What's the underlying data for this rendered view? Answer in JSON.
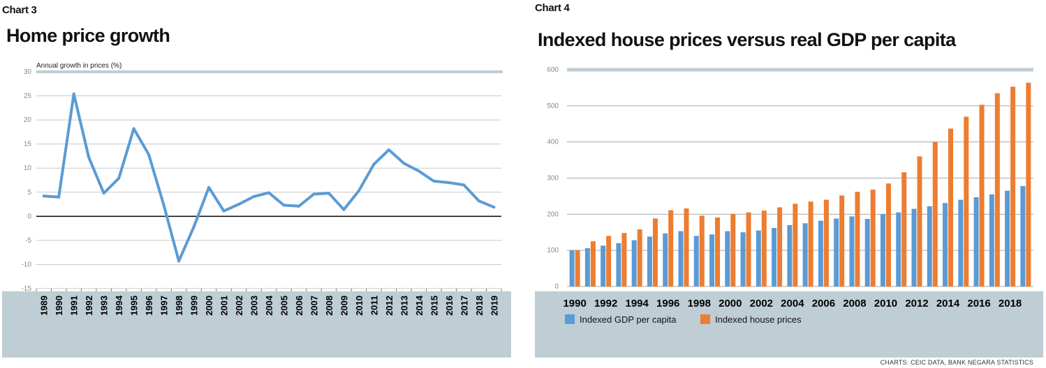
{
  "footer": {
    "source": "CHARTS: CEIC DATA, BANK NEGARA STATISTICS"
  },
  "colors": {
    "line": "#5b9bd5",
    "gdp": "#5b9bd5",
    "house": "#ed7d31",
    "band": "#bfcdd4",
    "grid": "#c9c9c9"
  },
  "chart_data": [
    {
      "label": "Chart 3",
      "type": "line",
      "title": "Home price growth",
      "ylabel": "Annual growth in prices (%)",
      "xlabel": "",
      "ylim": [
        -15,
        30
      ],
      "yticks": [
        "30",
        "25",
        "20",
        "15",
        "10",
        "5",
        "0",
        "-5",
        "-10",
        "-15"
      ],
      "grid": true,
      "x": [
        "1989",
        "1990",
        "1991",
        "1992",
        "1993",
        "1994",
        "1995",
        "1996",
        "1997",
        "1998",
        "1999",
        "2000",
        "2001",
        "2002",
        "2003",
        "2004",
        "2005",
        "2006",
        "2007",
        "2008",
        "2009",
        "2010",
        "2011",
        "2012",
        "2013",
        "2014",
        "2015",
        "2016",
        "2017",
        "2018",
        "2019"
      ],
      "series": [
        {
          "values": [
            4.2,
            4.0,
            25.4,
            12.2,
            4.8,
            7.9,
            18.2,
            12.8,
            2.3,
            -9.3,
            -2.2,
            6.0,
            1.1,
            2.5,
            4.1,
            4.9,
            2.3,
            2.1,
            4.6,
            4.8,
            1.4,
            5.3,
            10.8,
            13.8,
            11.0,
            9.4,
            7.3,
            7.0,
            6.5,
            3.2,
            1.9
          ]
        }
      ]
    },
    {
      "label": "Chart 4",
      "type": "bar",
      "title": "Indexed house prices versus real GDP per capita",
      "xlabel": "",
      "ylabel": "",
      "ylim": [
        0,
        600
      ],
      "yticks": [
        "600",
        "500",
        "400",
        "300",
        "200",
        "100",
        "0"
      ],
      "grid": true,
      "legend": "bottom-left",
      "categories": [
        "1990",
        "1991",
        "1992",
        "1993",
        "1994",
        "1995",
        "1996",
        "1997",
        "1998",
        "1999",
        "2000",
        "2001",
        "2002",
        "2003",
        "2004",
        "2005",
        "2006",
        "2007",
        "2008",
        "2009",
        "2010",
        "2011",
        "2012",
        "2013",
        "2014",
        "2015",
        "2016",
        "2017",
        "2018",
        "2019"
      ],
      "xtick_labels": [
        "1990",
        "1992",
        "1994",
        "1996",
        "1998",
        "2000",
        "2002",
        "2004",
        "2006",
        "2008",
        "2010",
        "2012",
        "2014",
        "2016",
        "2018"
      ],
      "series": [
        {
          "name": "Indexed GDP per capita",
          "values": [
            100,
            106,
            113,
            120,
            128,
            138,
            147,
            153,
            140,
            144,
            153,
            150,
            155,
            162,
            170,
            175,
            182,
            188,
            194,
            187,
            200,
            205,
            215,
            222,
            231,
            240,
            247,
            255,
            265,
            278
          ]
        },
        {
          "name": "Indexed house prices",
          "values": [
            100,
            125,
            140,
            148,
            158,
            188,
            211,
            216,
            196,
            191,
            201,
            205,
            210,
            219,
            229,
            235,
            240,
            252,
            262,
            268,
            285,
            316,
            360,
            400,
            437,
            470,
            503,
            535,
            553,
            564
          ]
        }
      ]
    }
  ]
}
